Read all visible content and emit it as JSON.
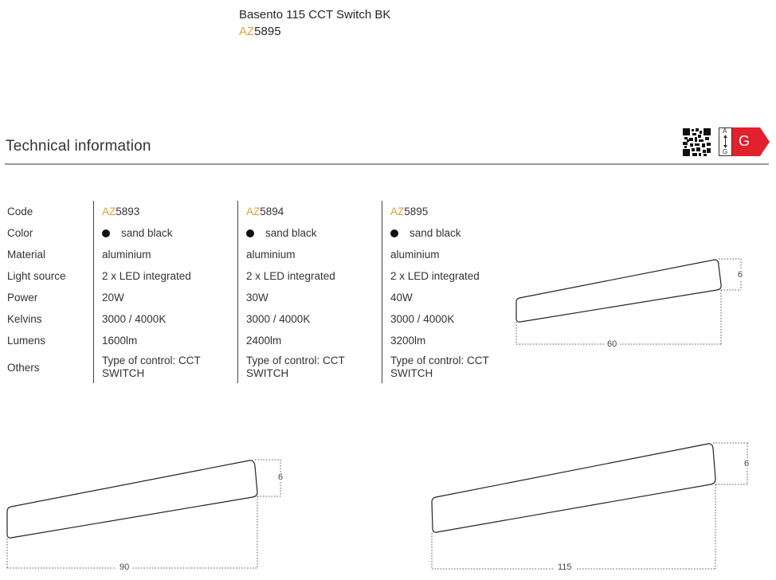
{
  "header": {
    "product_name": "Basento 115 CCT Switch BK",
    "product_code_prefix": "AZ",
    "product_code_number": "5895"
  },
  "section": {
    "title": "Technical information"
  },
  "energy_label": {
    "class": "G",
    "scale_top": "A",
    "scale_bottom": "G",
    "color": "#e3202d"
  },
  "spec_table": {
    "row_labels": [
      "Code",
      "Color",
      "Material",
      "Light source",
      "Power",
      "Kelvins",
      "Lumens",
      "Others"
    ],
    "columns": [
      {
        "code_prefix": "AZ",
        "code_number": "5893",
        "color": "sand black",
        "material": "aluminium",
        "light_source": "2 x LED integrated",
        "power": "20W",
        "kelvins": "3000 / 4000K",
        "lumens": "1600lm",
        "others": "Type of control: CCT SWITCH"
      },
      {
        "code_prefix": "AZ",
        "code_number": "5894",
        "color": "sand black",
        "material": "aluminium",
        "light_source": "2 x LED integrated",
        "power": "30W",
        "kelvins": "3000 / 4000K",
        "lumens": "2400lm",
        "others": "Type of control: CCT SWITCH"
      },
      {
        "code_prefix": "AZ",
        "code_number": "5895",
        "color": "sand black",
        "material": "aluminium",
        "light_source": "2 x LED integrated",
        "power": "40W",
        "kelvins": "3000 / 4000K",
        "lumens": "3200lm",
        "others": "Type of control: CCT SWITCH"
      }
    ]
  },
  "diagrams": [
    {
      "length": "60",
      "height": "6"
    },
    {
      "length": "90",
      "height": "6"
    },
    {
      "length": "115",
      "height": "6"
    }
  ],
  "colors": {
    "accent": "#d8a33a",
    "text": "#2a2a2a",
    "rule": "#9a9a9a"
  }
}
